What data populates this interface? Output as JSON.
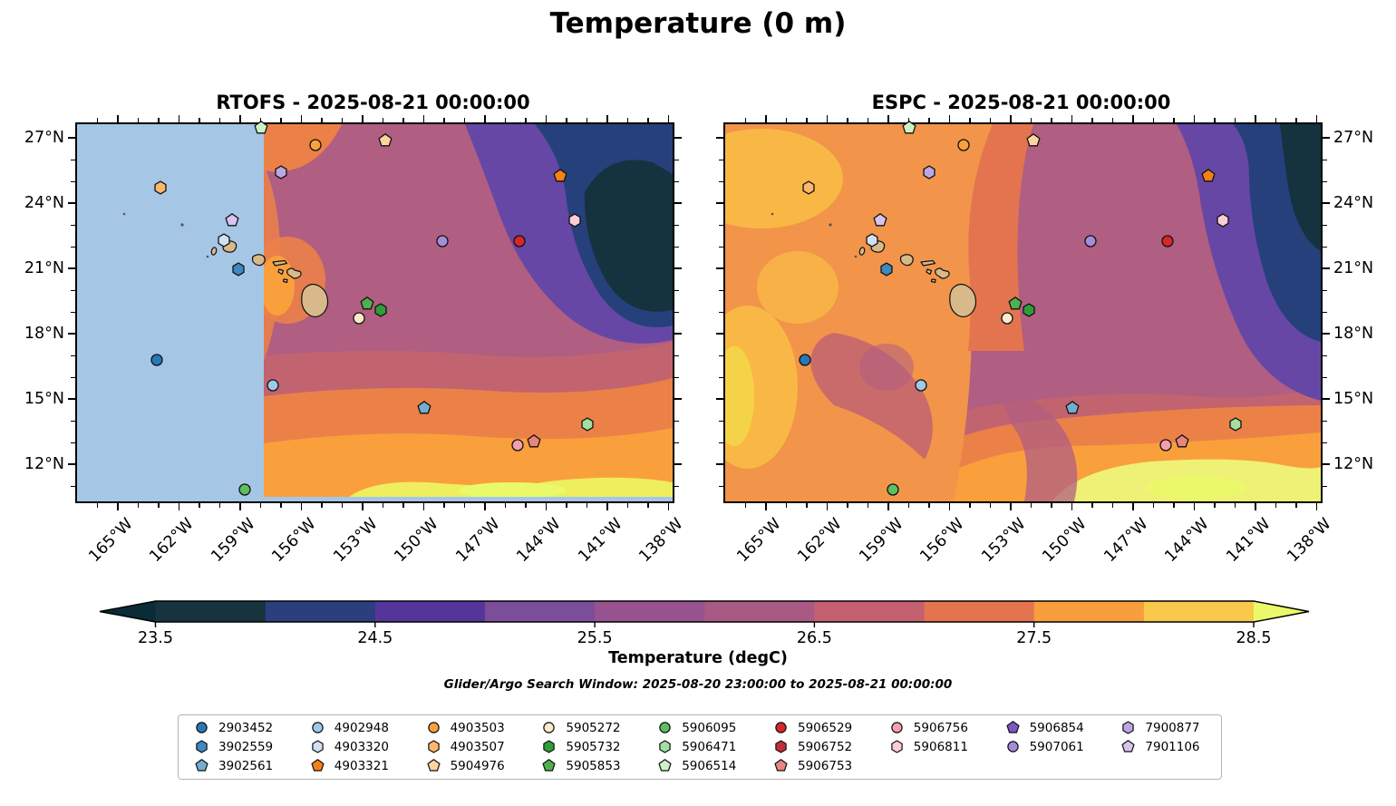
{
  "suptitle": "Temperature (0 m)",
  "panels": [
    {
      "model": "RTOFS",
      "title": "RTOFS - 2025-08-21 00:00:00"
    },
    {
      "model": "ESPC",
      "title": "ESPC - 2025-08-21 00:00:00"
    }
  ],
  "axes": {
    "lon_tick_labels": [
      "165°W",
      "162°W",
      "159°W",
      "156°W",
      "153°W",
      "150°W",
      "147°W",
      "144°W",
      "141°W",
      "138°W"
    ],
    "lon_tick_values_w": [
      165,
      162,
      159,
      156,
      153,
      150,
      147,
      144,
      141,
      138
    ],
    "lat_tick_labels": [
      "27°N",
      "24°N",
      "21°N",
      "18°N",
      "15°N",
      "12°N"
    ],
    "lat_tick_values_n": [
      27,
      24,
      21,
      18,
      15,
      12
    ],
    "extent": {
      "lon_west_w": 167.0,
      "lon_east_w": 137.8,
      "lat_north": 27.63,
      "lat_south": 10.3
    }
  },
  "colorbar": {
    "label": "Temperature (degC)",
    "tick_labels": [
      "23.5",
      "24.5",
      "25.5",
      "26.5",
      "27.5",
      "28.5"
    ],
    "levels": [
      23.5,
      24.0,
      24.5,
      25.0,
      25.5,
      26.0,
      26.5,
      27.0,
      27.5,
      28.0,
      28.5
    ],
    "segment_colors": [
      "#16333e",
      "#2b3e7e",
      "#56359b",
      "#7c4d98",
      "#96538f",
      "#a85a84",
      "#c4606f",
      "#e4744e",
      "#f89e3c",
      "#f8c94b"
    ],
    "under_color": "#0b2b36",
    "over_color": "#e9f969"
  },
  "subtitle": "Glider/Argo Search Window: 2025-08-20 23:00:00 to 2025-08-21 00:00:00",
  "legend": {
    "entries": [
      {
        "id": "2903452",
        "shape": "circle",
        "color": "#2878b8"
      },
      {
        "id": "3902559",
        "shape": "hexagon",
        "color": "#3d89c0"
      },
      {
        "id": "3902561",
        "shape": "pentagon",
        "color": "#74add1"
      },
      {
        "id": "4902948",
        "shape": "circle",
        "color": "#9ecae8"
      },
      {
        "id": "4903320",
        "shape": "hexagon",
        "color": "#cfe1f2"
      },
      {
        "id": "4903321",
        "shape": "pentagon",
        "color": "#f58214"
      },
      {
        "id": "4903503",
        "shape": "circle",
        "color": "#f9a13c"
      },
      {
        "id": "4903507",
        "shape": "hexagon",
        "color": "#fbb76a"
      },
      {
        "id": "5904976",
        "shape": "pentagon",
        "color": "#fdd49e"
      },
      {
        "id": "5905272",
        "shape": "circle",
        "color": "#fdeacd"
      },
      {
        "id": "5905732",
        "shape": "hexagon",
        "color": "#2f9e37"
      },
      {
        "id": "5905853",
        "shape": "pentagon",
        "color": "#4fb04d"
      },
      {
        "id": "5906095",
        "shape": "circle",
        "color": "#5cc05e"
      },
      {
        "id": "5906471",
        "shape": "hexagon",
        "color": "#a3e0a0"
      },
      {
        "id": "5906514",
        "shape": "pentagon",
        "color": "#ccf3c6"
      },
      {
        "id": "5906529",
        "shape": "circle",
        "color": "#d62828"
      },
      {
        "id": "5906752",
        "shape": "hexagon",
        "color": "#bf3036"
      },
      {
        "id": "5906753",
        "shape": "pentagon",
        "color": "#e8857f"
      },
      {
        "id": "5906756",
        "shape": "circle",
        "color": "#f49fae"
      },
      {
        "id": "5906811",
        "shape": "hexagon",
        "color": "#fbcdd5"
      },
      {
        "id": "5906854",
        "shape": "pentagon",
        "color": "#7e57c2"
      },
      {
        "id": "5907061",
        "shape": "circle",
        "color": "#a48dd8"
      },
      {
        "id": "7900877",
        "shape": "hexagon",
        "color": "#bda7e0"
      },
      {
        "id": "7901106",
        "shape": "pentagon",
        "color": "#d7c5ee"
      }
    ]
  },
  "chart_data": {
    "type": "heatmap",
    "subtype": "filled-contour-geographic-map",
    "title": "Temperature (0 m)",
    "variable": "Temperature",
    "depth_m": 0,
    "units": "degC",
    "panels": [
      {
        "model": "RTOFS",
        "valid_time": "2025-08-21 00:00:00",
        "note": "no model data west of ~157.7°W shown as flat light-blue region"
      },
      {
        "model": "ESPC",
        "valid_time": "2025-08-21 00:00:00"
      }
    ],
    "extent": {
      "lon_west_w": 167.0,
      "lon_east_w": 137.8,
      "lat_north": 27.63,
      "lat_south": 10.3
    },
    "contour_levels_degC": [
      23.5,
      24.0,
      24.5,
      25.0,
      25.5,
      26.0,
      26.5,
      27.0,
      27.5,
      28.0,
      28.5
    ],
    "colorbar_extends": "both",
    "no_data_color": "#a6c6e6",
    "land_color": "#d8b98a",
    "floats_on_map": [
      {
        "id": "5906514",
        "lon_w": 158.0,
        "lat_n": 27.45
      },
      {
        "id": "4903503",
        "lon_w": 155.3,
        "lat_n": 26.67
      },
      {
        "id": "5904976",
        "lon_w": 151.9,
        "lat_n": 26.88
      },
      {
        "id": "4903321",
        "lon_w": 143.3,
        "lat_n": 25.26
      },
      {
        "id": "7900877",
        "lon_w": 157.0,
        "lat_n": 25.42
      },
      {
        "id": "4903507",
        "lon_w": 162.9,
        "lat_n": 24.71
      },
      {
        "id": "7901106",
        "lon_w": 159.4,
        "lat_n": 23.21
      },
      {
        "id": "4903320",
        "lon_w": 159.8,
        "lat_n": 22.3
      },
      {
        "id": "5907061",
        "lon_w": 149.1,
        "lat_n": 22.26
      },
      {
        "id": "5906529",
        "lon_w": 145.3,
        "lat_n": 22.26
      },
      {
        "id": "5906811",
        "lon_w": 142.6,
        "lat_n": 23.21
      },
      {
        "id": "3902559",
        "lon_w": 159.1,
        "lat_n": 20.96
      },
      {
        "id": "5905853",
        "lon_w": 152.8,
        "lat_n": 19.38
      },
      {
        "id": "5905732",
        "lon_w": 152.1,
        "lat_n": 19.09
      },
      {
        "id": "5905272",
        "lon_w": 153.2,
        "lat_n": 18.71
      },
      {
        "id": "2903452",
        "lon_w": 163.1,
        "lat_n": 16.8
      },
      {
        "id": "4902948",
        "lon_w": 157.4,
        "lat_n": 15.63
      },
      {
        "id": "3902561",
        "lon_w": 150.0,
        "lat_n": 14.59
      },
      {
        "id": "5906471",
        "lon_w": 142.0,
        "lat_n": 13.84
      },
      {
        "id": "5906756",
        "lon_w": 145.4,
        "lat_n": 12.9
      },
      {
        "id": "5906753",
        "lon_w": 144.6,
        "lat_n": 13.05
      },
      {
        "id": "5906095",
        "lon_w": 158.8,
        "lat_n": 10.84
      }
    ],
    "floats_legend_only": [
      "5906752",
      "5906854"
    ]
  }
}
